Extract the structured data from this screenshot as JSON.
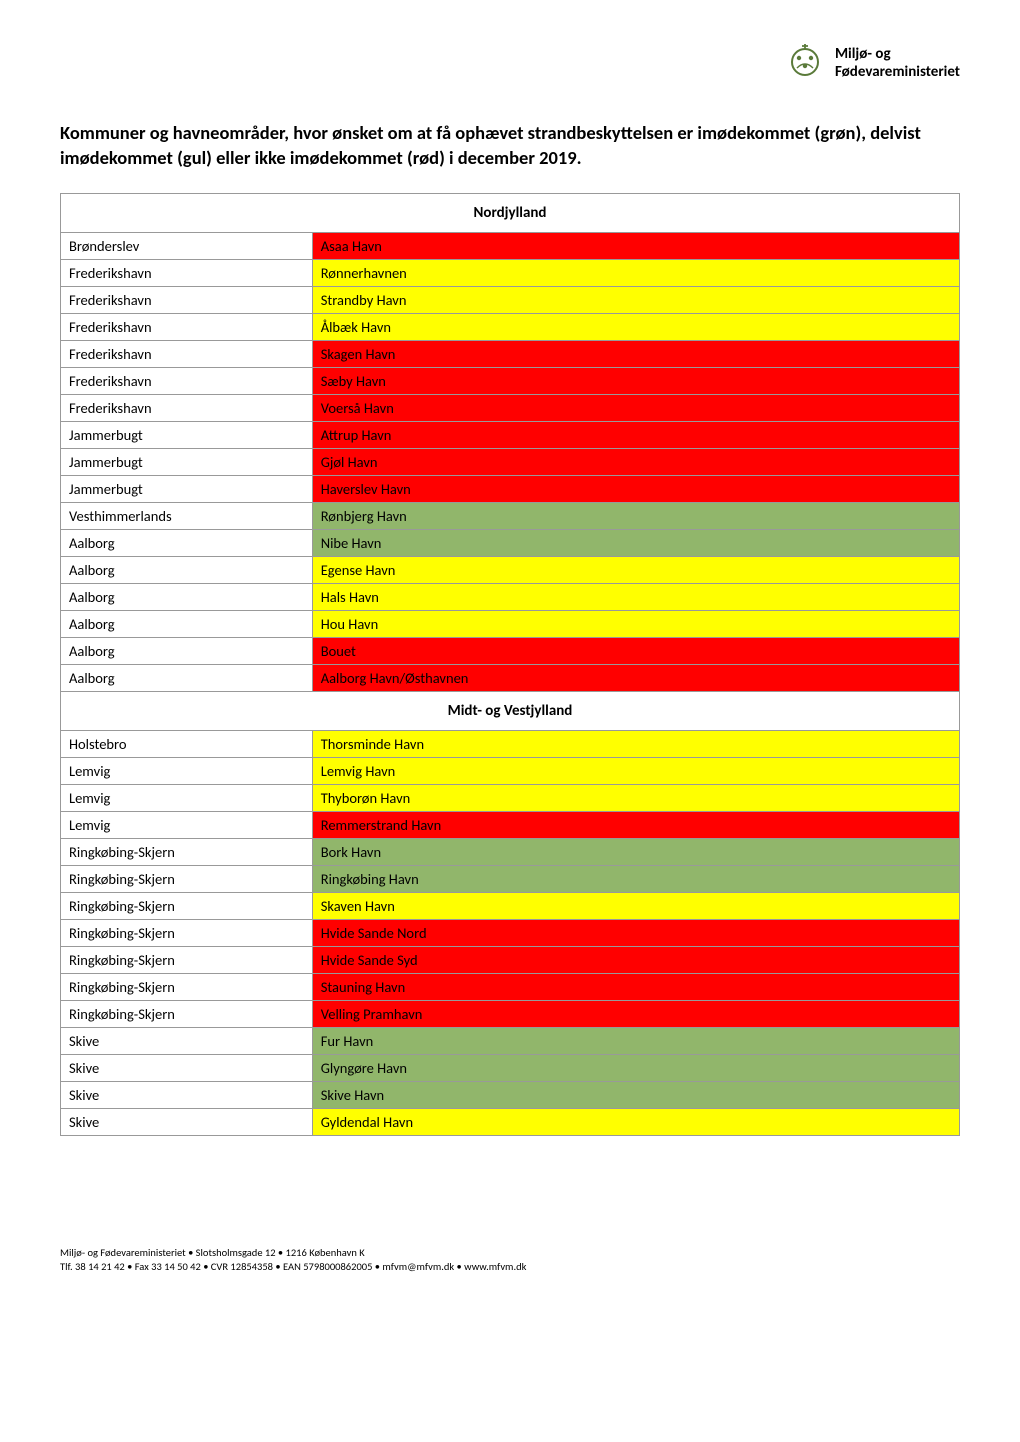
{
  "colors": {
    "green": "#91b66b",
    "yellow": "#ffff00",
    "red": "#ff0000",
    "white": "#ffffff",
    "border": "#999999",
    "text": "#000000"
  },
  "logo": {
    "line1": "Miljø- og",
    "line2": "Fødevareministeriet"
  },
  "intro": "Kommuner og havneområder, hvor ønsket om at få ophævet strandbeskyttelsen er imødekommet (grøn), delvist imødekommet (gul) eller ikke imødekommet (rød) i december 2019.",
  "sections": [
    {
      "title": "Nordjylland",
      "rows": [
        {
          "mun": "Brønderslev",
          "harbor": "Asaa Havn",
          "status": "red"
        },
        {
          "mun": "Frederikshavn",
          "harbor": "Rønnerhavnen",
          "status": "yellow"
        },
        {
          "mun": "Frederikshavn",
          "harbor": "Strandby Havn",
          "status": "yellow"
        },
        {
          "mun": "Frederikshavn",
          "harbor": "Ålbæk Havn",
          "status": "yellow"
        },
        {
          "mun": "Frederikshavn",
          "harbor": "Skagen Havn",
          "status": "red"
        },
        {
          "mun": "Frederikshavn",
          "harbor": "Sæby Havn",
          "status": "red"
        },
        {
          "mun": "Frederikshavn",
          "harbor": "Voerså Havn",
          "status": "red"
        },
        {
          "mun": "Jammerbugt",
          "harbor": "Attrup Havn",
          "status": "red"
        },
        {
          "mun": "Jammerbugt",
          "harbor": "Gjøl Havn",
          "status": "red"
        },
        {
          "mun": "Jammerbugt",
          "harbor": "Haverslev Havn",
          "status": "red"
        },
        {
          "mun": "Vesthimmerlands",
          "harbor": "Rønbjerg Havn",
          "status": "green"
        },
        {
          "mun": "Aalborg",
          "harbor": "Nibe Havn",
          "status": "green"
        },
        {
          "mun": "Aalborg",
          "harbor": "Egense Havn",
          "status": "yellow"
        },
        {
          "mun": "Aalborg",
          "harbor": "Hals Havn",
          "status": "yellow"
        },
        {
          "mun": "Aalborg",
          "harbor": "Hou Havn",
          "status": "yellow"
        },
        {
          "mun": "Aalborg",
          "harbor": "Bouet",
          "status": "red"
        },
        {
          "mun": "Aalborg",
          "harbor": "Aalborg Havn/Østhavnen",
          "status": "red"
        }
      ]
    },
    {
      "title": "Midt- og Vestjylland",
      "rows": [
        {
          "mun": "Holstebro",
          "harbor": "Thorsminde Havn",
          "status": "yellow"
        },
        {
          "mun": "Lemvig",
          "harbor": "Lemvig Havn",
          "status": "yellow"
        },
        {
          "mun": "Lemvig",
          "harbor": "Thyborøn Havn",
          "status": "yellow"
        },
        {
          "mun": "Lemvig",
          "harbor": "Remmerstrand Havn",
          "status": "red"
        },
        {
          "mun": "Ringkøbing-Skjern",
          "harbor": "Bork Havn",
          "status": "green"
        },
        {
          "mun": "Ringkøbing-Skjern",
          "harbor": "Ringkøbing Havn",
          "status": "green"
        },
        {
          "mun": "Ringkøbing-Skjern",
          "harbor": "Skaven Havn",
          "status": "yellow"
        },
        {
          "mun": "Ringkøbing-Skjern",
          "harbor": "Hvide Sande Nord",
          "status": "red"
        },
        {
          "mun": "Ringkøbing-Skjern",
          "harbor": "Hvide Sande Syd",
          "status": "red"
        },
        {
          "mun": "Ringkøbing-Skjern",
          "harbor": "Stauning Havn",
          "status": "red"
        },
        {
          "mun": "Ringkøbing-Skjern",
          "harbor": "Velling Pramhavn",
          "status": "red"
        },
        {
          "mun": "Skive",
          "harbor": "Fur Havn",
          "status": "green"
        },
        {
          "mun": "Skive",
          "harbor": "Glyngøre Havn",
          "status": "green"
        },
        {
          "mun": "Skive",
          "harbor": "Skive Havn",
          "status": "green"
        },
        {
          "mun": "Skive",
          "harbor": "Gyldendal Havn",
          "status": "yellow"
        }
      ]
    }
  ],
  "footer": {
    "line1": "Miljø- og Fødevareministeriet • Slotsholmsgade 12 • 1216 København K",
    "line2": "Tlf. 38 14 21 42 • Fax 33 14 50 42 • CVR 12854358 • EAN 5798000862005 • mfvm@mfvm.dk • www.mfvm.dk"
  }
}
